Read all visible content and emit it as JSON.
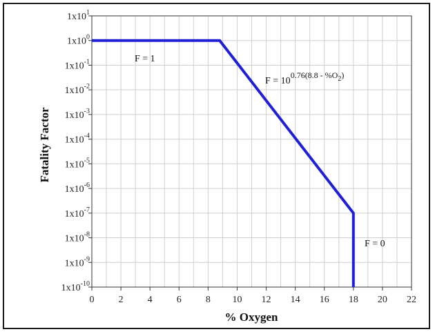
{
  "chart_data": {
    "type": "line",
    "xlabel": "% Oxygen",
    "ylabel": "Fatality Factor",
    "xlim": [
      0,
      22
    ],
    "ylim_log10": [
      -10,
      1
    ],
    "y_scale": "log",
    "x_ticks": [
      "0",
      "2",
      "4",
      "6",
      "8",
      "10",
      "12",
      "14",
      "16",
      "18",
      "20",
      "22"
    ],
    "y_ticks": [
      {
        "base": "1x10",
        "exp": "1"
      },
      {
        "base": "1x10",
        "exp": "0"
      },
      {
        "base": "1x10",
        "exp": "-1"
      },
      {
        "base": "1x10",
        "exp": "-2"
      },
      {
        "base": "1x10",
        "exp": "-3"
      },
      {
        "base": "1x10",
        "exp": "-4"
      },
      {
        "base": "1x10",
        "exp": "-5"
      },
      {
        "base": "1x10",
        "exp": "-6"
      },
      {
        "base": "1x10",
        "exp": "-7"
      },
      {
        "base": "1x10",
        "exp": "-8"
      },
      {
        "base": "1x10",
        "exp": "-9"
      },
      {
        "base": "1x10",
        "exp": "-10"
      }
    ],
    "grid": true,
    "series": [
      {
        "color": "#1f1fd6",
        "points": [
          {
            "x": 0,
            "y": 1
          },
          {
            "x": 8.8,
            "y": 1
          },
          {
            "x": 18,
            "y": 1e-07
          },
          {
            "x": 18,
            "y": 1e-10
          }
        ]
      }
    ],
    "annotations": {
      "f_one": "F = 1",
      "f_formula": {
        "base": "F = 10",
        "exp_pre": "0.76(8.8 - %O",
        "exp_sub": "2",
        "exp_post": ")"
      },
      "f_zero": "F = 0"
    }
  }
}
